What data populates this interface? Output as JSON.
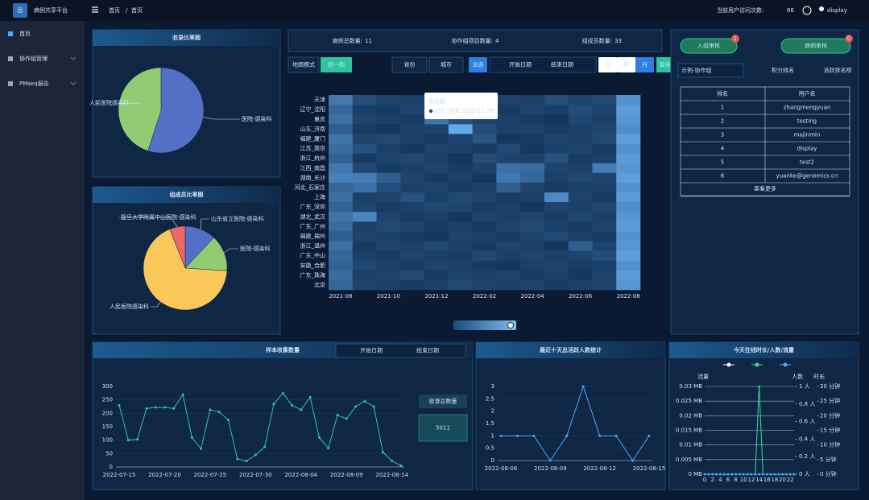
{
  "header": {
    "logo": "因",
    "title": "病例共享平台",
    "breadcrumb": [
      "首页",
      "首页"
    ],
    "separator": "/",
    "visits_label": "当前用户访问次数:",
    "visits": 66,
    "user": "display"
  },
  "sidebar": {
    "items": [
      "首页",
      "协作组管理",
      "PMseq报告"
    ]
  },
  "stats": [
    {
      "label": "病例总数量:",
      "value": 11
    },
    {
      "label": "协作组项目数量:",
      "value": 4
    },
    {
      "label": "组成员数量:",
      "value": 33
    }
  ],
  "filters": {
    "map_mode": "地图模式",
    "unified": "统一图",
    "province": "省份",
    "city": "城市",
    "select_all": "全选",
    "start": "开始日期",
    "end": "结束日期",
    "periods": [
      "日",
      "周",
      "月"
    ],
    "query": "查询"
  },
  "pie_collect": {
    "type": "pie",
    "title": "收录比率图",
    "categories": [
      "医院-感染科",
      "人民医院感染科"
    ],
    "values": [
      55,
      45
    ],
    "colors": [
      "#5470c6",
      "#91cc75"
    ]
  },
  "pie_members": {
    "type": "pie",
    "title": "组成员比率图",
    "categories": [
      "山东省立医院-感染科",
      "医院-感染科",
      "人民医院感染科",
      "复旦大学附属中山医院-感染科"
    ],
    "values": [
      12,
      14,
      68,
      6
    ],
    "colors": [
      "#5470c6",
      "#91cc75",
      "#fac858",
      "#ee6666"
    ]
  },
  "heatmap": {
    "type": "heatmap",
    "categories": [
      "2021-08",
      null,
      "2021-10",
      null,
      "2021-12",
      null,
      "2022-02",
      null,
      "2022-04",
      null,
      "2022-06",
      null,
      "2022-08"
    ],
    "rows": [
      "天津",
      "辽宁_沈阳",
      "重庆",
      "山东_济南",
      "福建_厦门",
      "江苏_南京",
      "浙江_杭州",
      "江西_南昌",
      "湖南_长沙",
      "河北_石家庄",
      "上海",
      "广东_深圳",
      "湖北_武汉",
      "广东_广州",
      "福建_福州",
      "浙江_温州",
      "广东_中山",
      "安徽_合肥",
      "广东_珠海",
      "北京"
    ],
    "values": [
      [
        18,
        8,
        6,
        5,
        7,
        4,
        9,
        6,
        5,
        8,
        6,
        7,
        24
      ],
      [
        14,
        5,
        4,
        6,
        3,
        5,
        7,
        4,
        6,
        5,
        8,
        6,
        26
      ],
      [
        16,
        6,
        5,
        4,
        17,
        9,
        6,
        5,
        4,
        3,
        7,
        5,
        25
      ],
      [
        12,
        4,
        3,
        5,
        6,
        29,
        8,
        5,
        6,
        4,
        5,
        6,
        23
      ],
      [
        17,
        6,
        7,
        5,
        4,
        6,
        10,
        3,
        4,
        6,
        5,
        7,
        27
      ],
      [
        15,
        9,
        5,
        3,
        6,
        5,
        4,
        7,
        3,
        5,
        6,
        4,
        24
      ],
      [
        13,
        4,
        6,
        7,
        5,
        3,
        8,
        6,
        5,
        9,
        4,
        5,
        26
      ],
      [
        18,
        7,
        4,
        5,
        6,
        4,
        5,
        16,
        15,
        6,
        5,
        19,
        25
      ],
      [
        20,
        19,
        12,
        6,
        4,
        5,
        3,
        18,
        14,
        5,
        7,
        6,
        27
      ],
      [
        14,
        16,
        8,
        5,
        6,
        4,
        5,
        12,
        6,
        4,
        5,
        5,
        24
      ],
      [
        16,
        5,
        6,
        9,
        5,
        7,
        6,
        4,
        5,
        22,
        6,
        4,
        26
      ],
      [
        13,
        6,
        4,
        5,
        7,
        6,
        4,
        5,
        3,
        6,
        5,
        7,
        23
      ],
      [
        17,
        21,
        6,
        4,
        5,
        3,
        6,
        5,
        6,
        4,
        7,
        5,
        25
      ],
      [
        15,
        5,
        7,
        6,
        4,
        5,
        3,
        6,
        7,
        5,
        4,
        6,
        26
      ],
      [
        12,
        6,
        5,
        4,
        3,
        6,
        5,
        4,
        6,
        7,
        5,
        4,
        24
      ],
      [
        16,
        4,
        6,
        5,
        7,
        5,
        4,
        6,
        5,
        3,
        12,
        6,
        25
      ],
      [
        14,
        5,
        4,
        6,
        5,
        4,
        7,
        5,
        6,
        5,
        6,
        8,
        27
      ],
      [
        13,
        7,
        5,
        4,
        6,
        5,
        4,
        3,
        5,
        6,
        4,
        5,
        24
      ],
      [
        15,
        5,
        6,
        7,
        4,
        6,
        5,
        6,
        4,
        5,
        3,
        6,
        26
      ],
      [
        14,
        6,
        5,
        4,
        5,
        7,
        6,
        5,
        6,
        4,
        5,
        6,
        25
      ]
    ],
    "vlim": [
      0,
      30
    ],
    "tooltip": {
      "title": "收录数",
      "row": "山东_济南",
      "column": "2022-01",
      "value": 29
    }
  },
  "review": {
    "buttons": [
      {
        "label": "入组审核",
        "badge": 1
      },
      {
        "label": "病例审核",
        "badge": 0
      }
    ]
  },
  "ranking": {
    "group": "示例-协作组",
    "title": "积分排名",
    "active": "活跃排名榜",
    "columns": [
      "排名",
      "用户名"
    ],
    "rows": [
      [
        1,
        "zhangmengyuan"
      ],
      [
        2,
        "testing"
      ],
      [
        3,
        "majinmin"
      ],
      [
        4,
        "display"
      ],
      [
        5,
        "test2"
      ],
      [
        6,
        "yuanke@genomics.cn"
      ]
    ],
    "more": "查看更多"
  },
  "samples": {
    "type": "line",
    "title": "样本收集数量",
    "start": "开始日期",
    "end": "结束日期",
    "color": "#2ec4b6",
    "categories": [
      "2022-07-15",
      null,
      null,
      null,
      null,
      "2022-07-20",
      null,
      null,
      null,
      null,
      "2022-07-25",
      null,
      null,
      null,
      null,
      "2022-07-30",
      null,
      null,
      null,
      null,
      "2022-08-04",
      null,
      null,
      null,
      null,
      "2022-08-09",
      null,
      null,
      null,
      null,
      "2022-08-14",
      null
    ],
    "values": [
      230,
      100,
      103,
      218,
      222,
      222,
      218,
      270,
      110,
      68,
      213,
      205,
      175,
      30,
      22,
      45,
      75,
      235,
      275,
      230,
      213,
      260,
      110,
      70,
      193,
      180,
      225,
      245,
      225,
      55,
      22,
      5
    ],
    "ylim": [
      0,
      300
    ],
    "yticks": [
      0,
      50,
      100,
      150,
      200,
      250,
      300
    ],
    "total_label": "收录总数量",
    "total": 5011
  },
  "active": {
    "type": "line",
    "title": "最近十天总活跃人数统计",
    "color": "#4aa8ff",
    "categories": [
      "2022-08-06",
      null,
      null,
      "2022-08-09",
      null,
      null,
      "2022-08-12",
      null,
      null,
      "2022-08-15"
    ],
    "values": [
      1,
      1,
      1,
      0,
      1,
      3,
      1,
      1,
      0,
      1
    ],
    "ylim": [
      0,
      3
    ],
    "yticks": [
      0,
      0.5,
      1,
      1.5,
      2,
      2.5,
      3
    ]
  },
  "online": {
    "type": "line",
    "title": "今天在线时长/人数/流量",
    "axis_titles": [
      "流量",
      "人数",
      "时长"
    ],
    "x": [
      0,
      1,
      2,
      3,
      4,
      5,
      6,
      7,
      8,
      9,
      10,
      11,
      12,
      13,
      14,
      15,
      16,
      17,
      18,
      19,
      20,
      21,
      22,
      23
    ],
    "xlim": [
      0,
      23
    ],
    "xticks": [
      0,
      2,
      4,
      6,
      8,
      10,
      12,
      14,
      16,
      18,
      20,
      22
    ],
    "ylim": [
      0,
      0.03
    ],
    "yticks": [
      {
        "value": 0,
        "label": "0 MB"
      },
      {
        "value": 0.005,
        "label": "0.005 MB"
      },
      {
        "value": 0.01,
        "label": "0.01 MB"
      },
      {
        "value": 0.015,
        "label": "0.015 MB"
      },
      {
        "value": 0.02,
        "label": "0.02 MB"
      },
      {
        "value": 0.025,
        "label": "0.025 MB"
      },
      {
        "value": 0.03,
        "label": "0.03 MB"
      }
    ],
    "y2lim": [
      0,
      1
    ],
    "y2ticks": [
      {
        "value": 0,
        "label": "0 人"
      },
      {
        "value": 0.2,
        "label": "0.2 人"
      },
      {
        "value": 0.4,
        "label": "0.4 人"
      },
      {
        "value": 0.6,
        "label": "0.6 人"
      },
      {
        "value": 0.8,
        "label": "0.8 人"
      },
      {
        "value": 1,
        "label": "1 人"
      }
    ],
    "y3lim": [
      0,
      30
    ],
    "y3ticks": [
      {
        "value": 0,
        "label": "0 分钟"
      },
      {
        "value": 5,
        "label": "5 分钟"
      },
      {
        "value": 10,
        "label": "10 分钟"
      },
      {
        "value": 15,
        "label": "15 分钟"
      },
      {
        "value": 20,
        "label": "20 分钟"
      },
      {
        "value": 25,
        "label": "25 分钟"
      },
      {
        "value": 30,
        "label": "30 分钟"
      }
    ],
    "series": [
      {
        "color": "#ffffff",
        "axis": "y",
        "values": [
          0,
          0,
          0,
          0,
          0,
          0,
          0,
          0,
          0,
          0,
          0,
          0,
          0,
          0,
          0,
          0,
          0,
          0,
          0,
          0,
          0,
          0,
          0,
          0
        ]
      },
      {
        "color": "#3ddc97",
        "axis": "y2",
        "values": [
          0,
          0,
          0,
          0,
          0,
          0,
          0,
          0,
          0,
          0,
          0,
          0,
          0,
          0,
          1,
          0,
          0,
          0,
          0,
          0,
          0,
          0,
          0,
          0
        ]
      },
      {
        "color": "#4aa8ff",
        "axis": "y3",
        "values": [
          0,
          0,
          0,
          0,
          0,
          0,
          0,
          0,
          0,
          0,
          0,
          0,
          0,
          0,
          0,
          0,
          0,
          0,
          0,
          0,
          0,
          0,
          0,
          0
        ]
      }
    ]
  }
}
